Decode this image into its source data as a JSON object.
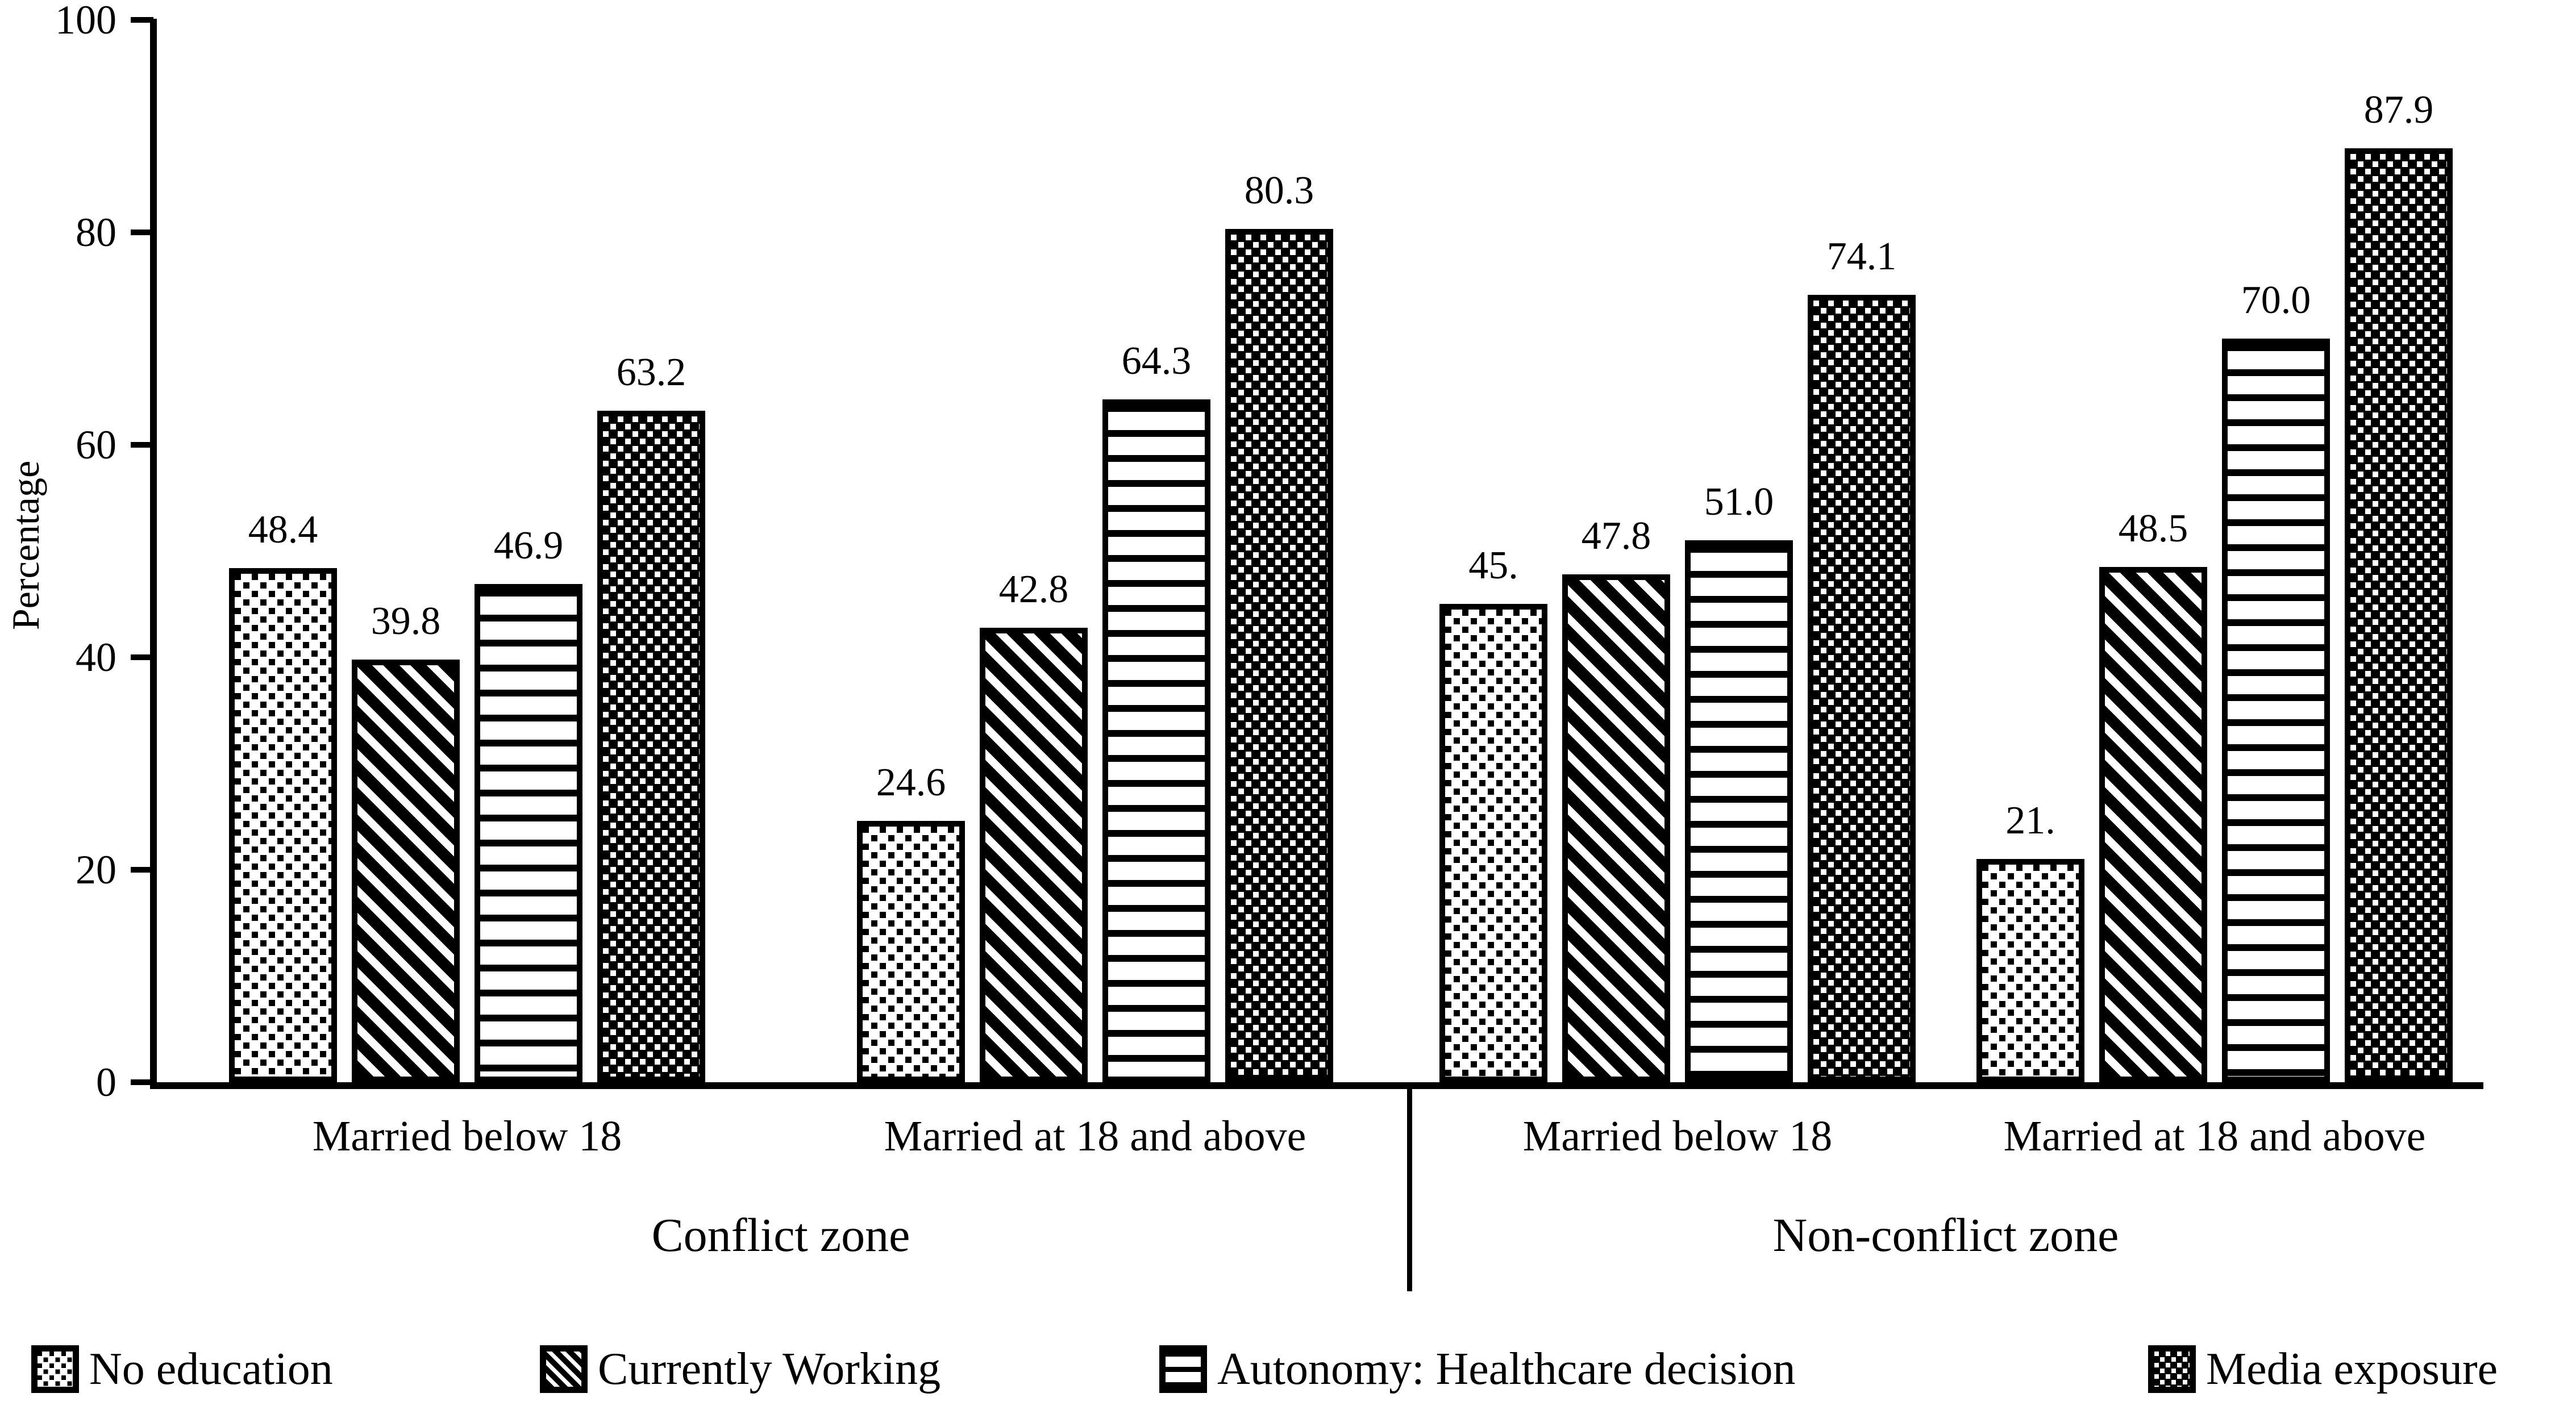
{
  "figure": {
    "background": "#ffffff",
    "ink": "#000000"
  },
  "chart_data": {
    "type": "bar",
    "title": "",
    "xlabel": "",
    "ylabel": "Percentage",
    "ylim": [
      0,
      100
    ],
    "yticks": [
      "0",
      "20",
      "40",
      "60",
      "80",
      "100"
    ],
    "grid": false,
    "legend_position": "bottom",
    "series": [
      {
        "name": "No education",
        "pattern": "black-square-dots-on-white"
      },
      {
        "name": "Currently Working",
        "pattern": "diagonal-stripes"
      },
      {
        "name": "Autonomy: Healthcare decision",
        "pattern": "horizontal-lines"
      },
      {
        "name": "Media exposure",
        "pattern": "white-square-dots-on-black"
      }
    ],
    "zones": [
      {
        "label": "Conflict zone"
      },
      {
        "label": "Non-conflict zone"
      }
    ],
    "groups": [
      {
        "zone": "Conflict zone",
        "category": "Married below 18",
        "values": [
          48.4,
          39.8,
          46.9,
          63.2
        ],
        "value_labels": [
          "48.4",
          "39.8",
          "46.9",
          "63.2"
        ]
      },
      {
        "zone": "Conflict zone",
        "category": "Married at 18 and above",
        "values": [
          24.6,
          42.8,
          64.3,
          80.3
        ],
        "value_labels": [
          "24.6",
          "42.8",
          "64.3",
          "80.3"
        ]
      },
      {
        "zone": "Non-conflict zone",
        "category": "Married below 18",
        "values": [
          45.0,
          47.8,
          51.0,
          74.1
        ],
        "value_labels": [
          "45.",
          "47.8",
          "51.0",
          "74.1"
        ]
      },
      {
        "zone": "Non-conflict zone",
        "category": "Married at 18 and above",
        "values": [
          21.0,
          48.5,
          70.0,
          87.9
        ],
        "value_labels": [
          "21.",
          "48.5",
          "70.0",
          "87.9"
        ]
      }
    ]
  }
}
